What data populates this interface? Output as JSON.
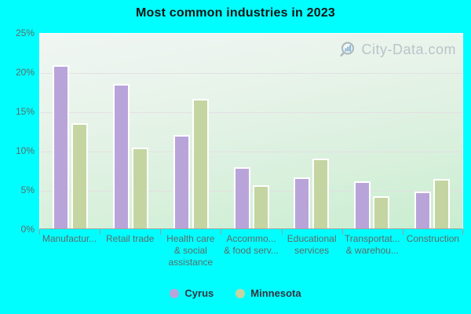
{
  "title": "Most common industries in 2023",
  "watermark": {
    "text": "City-Data.com"
  },
  "colors": {
    "background": "#00feff",
    "cyrus_bar": "#b9a4da",
    "minnesota_bar": "#c4d5a1",
    "grid": "#e4dce2",
    "axis_text": "#5d6b68"
  },
  "chart_data": {
    "type": "bar",
    "title": "Most common industries in 2023",
    "categories": [
      "Manufactur...",
      "Retail trade",
      "Health care\n& social\nassistance",
      "Accommo...\n& food serv...",
      "Educational\nservices",
      "Transportat...\n& warehou...",
      "Construction"
    ],
    "series": [
      {
        "name": "Cyrus",
        "color": "#b9a4da",
        "values": [
          21.0,
          18.6,
          12.0,
          7.9,
          6.6,
          6.0,
          4.7
        ]
      },
      {
        "name": "Minnesota",
        "color": "#c4d5a1",
        "values": [
          13.5,
          10.4,
          16.6,
          5.5,
          9.0,
          4.1,
          6.4
        ]
      }
    ],
    "xlabel": "",
    "ylabel": "",
    "ylim": [
      0,
      25
    ],
    "yticks": [
      0,
      5,
      10,
      15,
      20,
      25
    ],
    "ytick_format": "percent",
    "grid": true,
    "legend_position": "bottom"
  },
  "legend": {
    "items": [
      {
        "label": "Cyrus",
        "color": "#b9a4da"
      },
      {
        "label": "Minnesota",
        "color": "#c4d5a1"
      }
    ]
  }
}
